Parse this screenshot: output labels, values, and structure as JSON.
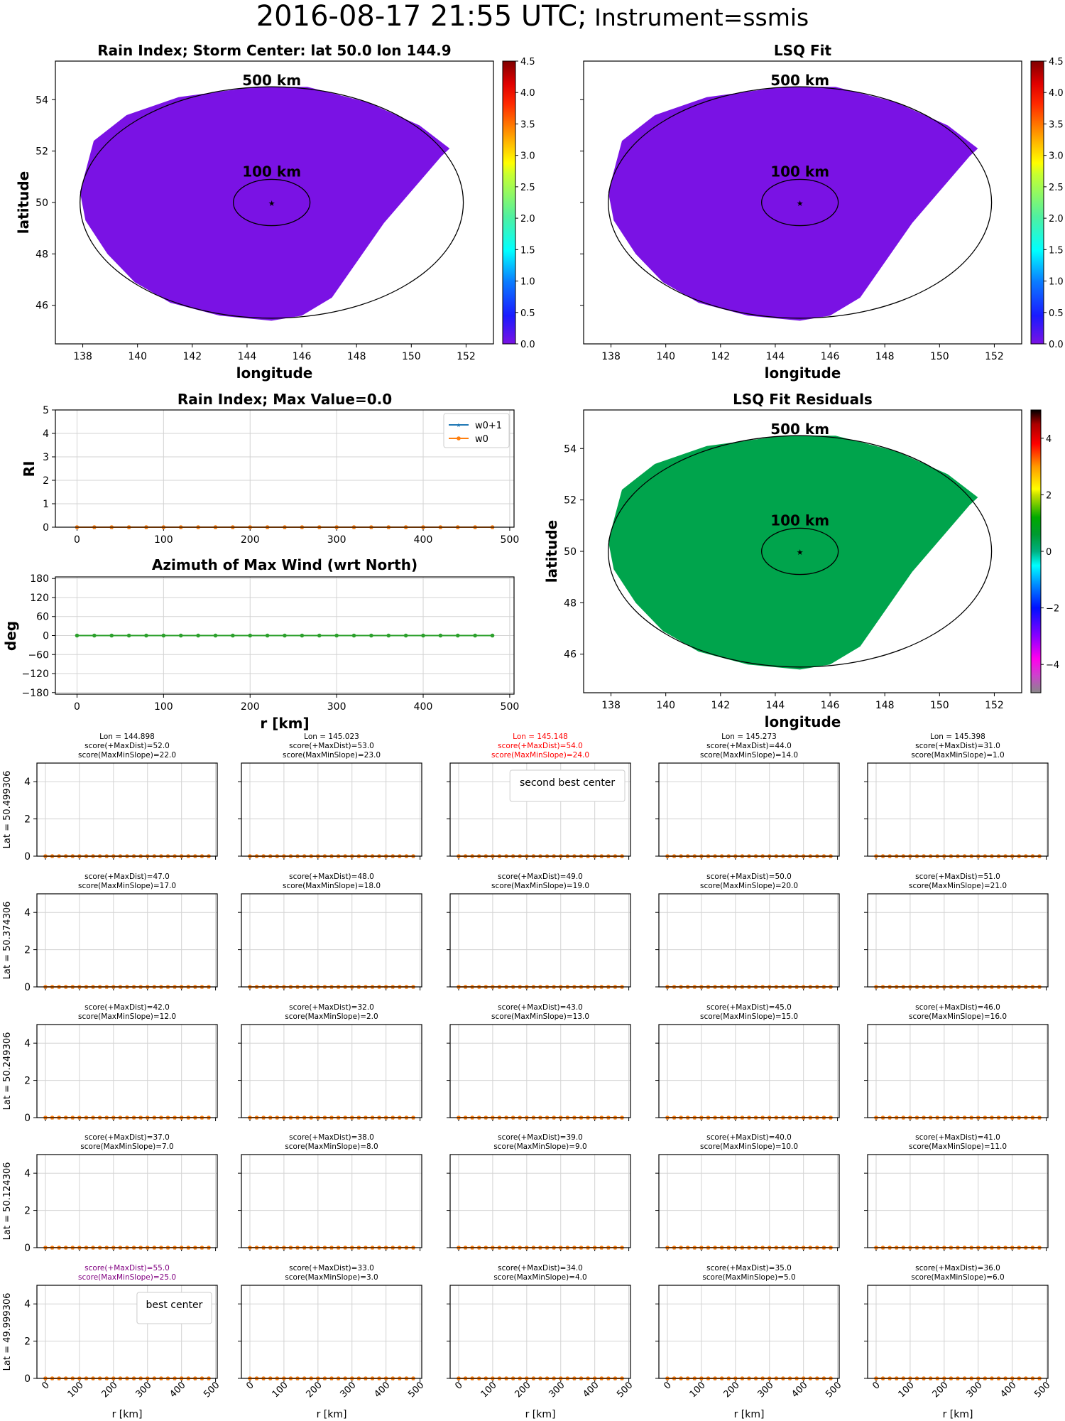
{
  "suptitle": {
    "main": "2016-08-17 21:55 UTC;",
    "instrument": " Instrument=ssmis"
  },
  "chart_data": [
    {
      "id": "rain-index-map",
      "type": "heatmap",
      "title": "Rain Index; Storm Center: lat 50.0 lon 144.9",
      "xlabel": "longitude",
      "ylabel": "latitude",
      "xlim": [
        137,
        153
      ],
      "ylim": [
        44.5,
        55.5
      ],
      "xticks": [
        138,
        140,
        142,
        144,
        146,
        148,
        150,
        152
      ],
      "yticks": [
        46,
        48,
        50,
        52,
        54
      ],
      "fill_value": 0.0,
      "fill_color": "#7a12e4",
      "storm_center": {
        "lat": 50.0,
        "lon": 144.9
      },
      "rings": [
        {
          "label": "500 km",
          "radius_km": 500
        },
        {
          "label": "100 km",
          "radius_km": 100
        }
      ],
      "colorbar": {
        "min": 0.0,
        "max": 4.5,
        "ticks": [
          "0.0",
          "0.5",
          "1.0",
          "1.5",
          "2.0",
          "2.5",
          "3.0",
          "3.5",
          "4.0",
          "4.5"
        ],
        "cmap": "jet"
      }
    },
    {
      "id": "lsq-fit-map",
      "type": "heatmap",
      "title": "LSQ Fit",
      "xlabel": "longitude",
      "ylabel": "",
      "xlim": [
        137,
        153
      ],
      "ylim": [
        44.5,
        55.5
      ],
      "xticks": [
        138,
        140,
        142,
        144,
        146,
        148,
        150,
        152
      ],
      "yticks": [
        46,
        48,
        50,
        52,
        54
      ],
      "fill_value": 0.0,
      "fill_color": "#7a12e4",
      "storm_center": {
        "lat": 50.0,
        "lon": 144.9
      },
      "rings": [
        {
          "label": "500 km",
          "radius_km": 500
        },
        {
          "label": "100 km",
          "radius_km": 100
        }
      ],
      "colorbar": {
        "min": 0.0,
        "max": 4.5,
        "ticks": [
          "0.0",
          "0.5",
          "1.0",
          "1.5",
          "2.0",
          "2.5",
          "3.0",
          "3.5",
          "4.0",
          "4.5"
        ],
        "cmap": "jet"
      }
    },
    {
      "id": "rain-index-profile",
      "type": "line",
      "title": "Rain Index; Max Value=0.0",
      "xlabel": "",
      "ylabel": "RI",
      "xlim": [
        -25,
        505
      ],
      "ylim": [
        0,
        5
      ],
      "xticks": [
        0,
        100,
        200,
        300,
        400,
        500
      ],
      "yticks": [
        0,
        1,
        2,
        3,
        4,
        5
      ],
      "grid": true,
      "legend": "top-right",
      "x": [
        0,
        20,
        40,
        60,
        80,
        100,
        120,
        140,
        160,
        180,
        200,
        220,
        240,
        260,
        280,
        300,
        320,
        340,
        360,
        380,
        400,
        420,
        440,
        460,
        480
      ],
      "series": [
        {
          "name": "w0+1",
          "color": "#1f77b4",
          "marker": "star",
          "values": [
            0,
            0,
            0,
            0,
            0,
            0,
            0,
            0,
            0,
            0,
            0,
            0,
            0,
            0,
            0,
            0,
            0,
            0,
            0,
            0,
            0,
            0,
            0,
            0,
            0
          ]
        },
        {
          "name": "w0",
          "color": "#ff7f0e",
          "marker": "dot",
          "values": [
            0,
            0,
            0,
            0,
            0,
            0,
            0,
            0,
            0,
            0,
            0,
            0,
            0,
            0,
            0,
            0,
            0,
            0,
            0,
            0,
            0,
            0,
            0,
            0,
            0
          ]
        }
      ]
    },
    {
      "id": "azimuth-profile",
      "type": "line",
      "title": "Azimuth of Max Wind (wrt North)",
      "xlabel": "r [km]",
      "ylabel": "deg",
      "xlim": [
        -25,
        505
      ],
      "ylim": [
        -185,
        185
      ],
      "xticks": [
        0,
        100,
        200,
        300,
        400,
        500
      ],
      "yticks": [
        -180,
        -120,
        -60,
        0,
        60,
        120,
        180
      ],
      "ytick_labels": [
        "−180",
        "−120",
        "−60",
        "0",
        "60",
        "120",
        "180"
      ],
      "grid": true,
      "x": [
        0,
        20,
        40,
        60,
        80,
        100,
        120,
        140,
        160,
        180,
        200,
        220,
        240,
        260,
        280,
        300,
        320,
        340,
        360,
        380,
        400,
        420,
        440,
        460,
        480
      ],
      "series": [
        {
          "name": "azimuth",
          "color": "#2ca02c",
          "marker": "dot",
          "values": [
            0,
            0,
            0,
            0,
            0,
            0,
            0,
            0,
            0,
            0,
            0,
            0,
            0,
            0,
            0,
            0,
            0,
            0,
            0,
            0,
            0,
            0,
            0,
            0,
            0
          ]
        }
      ]
    },
    {
      "id": "lsq-residuals-map",
      "type": "heatmap",
      "title": "LSQ Fit Residuals",
      "xlabel": "longitude",
      "ylabel": "latitude",
      "xlim": [
        137,
        153
      ],
      "ylim": [
        44.5,
        55.5
      ],
      "xticks": [
        138,
        140,
        142,
        144,
        146,
        148,
        150,
        152
      ],
      "yticks": [
        46,
        48,
        50,
        52,
        54
      ],
      "fill_value": 0.0,
      "fill_color": "#00a44c",
      "storm_center": {
        "lat": 50.0,
        "lon": 144.9
      },
      "rings": [
        {
          "label": "500 km",
          "radius_km": 500
        },
        {
          "label": "100 km",
          "radius_km": 100
        }
      ],
      "colorbar": {
        "min": -5,
        "max": 5,
        "ticks": [
          "−4",
          "−2",
          "0",
          "2",
          "4"
        ],
        "tick_values": [
          -4,
          -2,
          0,
          2,
          4
        ],
        "cmap": "nipy_spectral"
      }
    },
    {
      "id": "center-grid",
      "type": "line",
      "xlabel": "r [km]",
      "xlim": [
        -25,
        505
      ],
      "ylim": [
        0,
        5
      ],
      "xticks": [
        0,
        100,
        200,
        300,
        400,
        500
      ],
      "yticks": [
        0,
        2,
        4
      ],
      "x": [
        0,
        20,
        40,
        60,
        80,
        100,
        120,
        140,
        160,
        180,
        200,
        220,
        240,
        260,
        280,
        300,
        320,
        340,
        360,
        380,
        400,
        420,
        440,
        460,
        480
      ],
      "series_values_all_panels": 0,
      "lons": [
        "144.898",
        "145.023",
        "145.148",
        "145.273",
        "145.398"
      ],
      "rows": [
        {
          "lat_label": "Lat = 50.499306",
          "cells": [
            {
              "lon": "Lon = 144.898",
              "maxdist": "score(+MaxDist)=52.0",
              "maxmin": "score(MaxMinSlope)=22.0",
              "color": "#000000",
              "legend": ""
            },
            {
              "lon": "Lon = 145.023",
              "maxdist": "score(+MaxDist)=53.0",
              "maxmin": "score(MaxMinSlope)=23.0",
              "color": "#000000",
              "legend": ""
            },
            {
              "lon": "Lon = 145.148",
              "maxdist": "score(+MaxDist)=54.0",
              "maxmin": "score(MaxMinSlope)=24.0",
              "color": "#ff0000",
              "legend": "second best center"
            },
            {
              "lon": "Lon = 145.273",
              "maxdist": "score(+MaxDist)=44.0",
              "maxmin": "score(MaxMinSlope)=14.0",
              "color": "#000000",
              "legend": ""
            },
            {
              "lon": "Lon = 145.398",
              "maxdist": "score(+MaxDist)=31.0",
              "maxmin": "score(MaxMinSlope)=1.0",
              "color": "#000000",
              "legend": ""
            }
          ]
        },
        {
          "lat_label": "Lat = 50.374306",
          "cells": [
            {
              "lon": "",
              "maxdist": "score(+MaxDist)=47.0",
              "maxmin": "score(MaxMinSlope)=17.0",
              "color": "#000000",
              "legend": ""
            },
            {
              "lon": "",
              "maxdist": "score(+MaxDist)=48.0",
              "maxmin": "score(MaxMinSlope)=18.0",
              "color": "#000000",
              "legend": ""
            },
            {
              "lon": "",
              "maxdist": "score(+MaxDist)=49.0",
              "maxmin": "score(MaxMinSlope)=19.0",
              "color": "#000000",
              "legend": ""
            },
            {
              "lon": "",
              "maxdist": "score(+MaxDist)=50.0",
              "maxmin": "score(MaxMinSlope)=20.0",
              "color": "#000000",
              "legend": ""
            },
            {
              "lon": "",
              "maxdist": "score(+MaxDist)=51.0",
              "maxmin": "score(MaxMinSlope)=21.0",
              "color": "#000000",
              "legend": ""
            }
          ]
        },
        {
          "lat_label": "Lat = 50.249306",
          "cells": [
            {
              "lon": "",
              "maxdist": "score(+MaxDist)=42.0",
              "maxmin": "score(MaxMinSlope)=12.0",
              "color": "#000000",
              "legend": ""
            },
            {
              "lon": "",
              "maxdist": "score(+MaxDist)=32.0",
              "maxmin": "score(MaxMinSlope)=2.0",
              "color": "#000000",
              "legend": ""
            },
            {
              "lon": "",
              "maxdist": "score(+MaxDist)=43.0",
              "maxmin": "score(MaxMinSlope)=13.0",
              "color": "#000000",
              "legend": ""
            },
            {
              "lon": "",
              "maxdist": "score(+MaxDist)=45.0",
              "maxmin": "score(MaxMinSlope)=15.0",
              "color": "#000000",
              "legend": ""
            },
            {
              "lon": "",
              "maxdist": "score(+MaxDist)=46.0",
              "maxmin": "score(MaxMinSlope)=16.0",
              "color": "#000000",
              "legend": ""
            }
          ]
        },
        {
          "lat_label": "Lat = 50.124306",
          "cells": [
            {
              "lon": "",
              "maxdist": "score(+MaxDist)=37.0",
              "maxmin": "score(MaxMinSlope)=7.0",
              "color": "#000000",
              "legend": ""
            },
            {
              "lon": "",
              "maxdist": "score(+MaxDist)=38.0",
              "maxmin": "score(MaxMinSlope)=8.0",
              "color": "#000000",
              "legend": ""
            },
            {
              "lon": "",
              "maxdist": "score(+MaxDist)=39.0",
              "maxmin": "score(MaxMinSlope)=9.0",
              "color": "#000000",
              "legend": ""
            },
            {
              "lon": "",
              "maxdist": "score(+MaxDist)=40.0",
              "maxmin": "score(MaxMinSlope)=10.0",
              "color": "#000000",
              "legend": ""
            },
            {
              "lon": "",
              "maxdist": "score(+MaxDist)=41.0",
              "maxmin": "score(MaxMinSlope)=11.0",
              "color": "#000000",
              "legend": ""
            }
          ]
        },
        {
          "lat_label": "Lat = 49.999306",
          "cells": [
            {
              "lon": "",
              "maxdist": "score(+MaxDist)=55.0",
              "maxmin": "score(MaxMinSlope)=25.0",
              "color": "#800080",
              "legend": "best center"
            },
            {
              "lon": "",
              "maxdist": "score(+MaxDist)=33.0",
              "maxmin": "score(MaxMinSlope)=3.0",
              "color": "#000000",
              "legend": ""
            },
            {
              "lon": "",
              "maxdist": "score(+MaxDist)=34.0",
              "maxmin": "score(MaxMinSlope)=4.0",
              "color": "#000000",
              "legend": ""
            },
            {
              "lon": "",
              "maxdist": "score(+MaxDist)=35.0",
              "maxmin": "score(MaxMinSlope)=5.0",
              "color": "#000000",
              "legend": ""
            },
            {
              "lon": "",
              "maxdist": "score(+MaxDist)=36.0",
              "maxmin": "score(MaxMinSlope)=6.0",
              "color": "#000000",
              "legend": ""
            }
          ]
        }
      ]
    }
  ]
}
